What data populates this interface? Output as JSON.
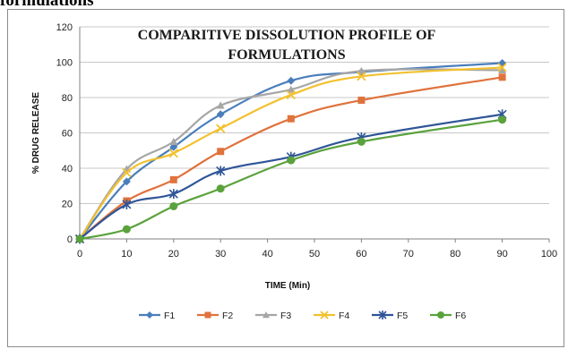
{
  "page": {
    "heading": "formulations"
  },
  "chart_data": {
    "type": "line",
    "title_lines": [
      "COMPARITIVE DISSOLUTION PROFILE OF",
      "FORMULATIONS"
    ],
    "xlabel": "TIME (Min)",
    "ylabel": "% DRUG RELEASE",
    "x": [
      0,
      10,
      20,
      30,
      45,
      60,
      90
    ],
    "xlim": [
      0,
      100
    ],
    "ylim": [
      0,
      120
    ],
    "xticks": [
      0,
      10,
      20,
      30,
      40,
      50,
      60,
      70,
      80,
      90,
      100
    ],
    "yticks": [
      0,
      20,
      40,
      60,
      80,
      100,
      120
    ],
    "grid": "horizontal",
    "legend_position": "bottom",
    "series": [
      {
        "name": "F1",
        "color": "#4a7ebb",
        "marker": "diamond",
        "values": [
          0,
          32.5,
          52,
          70.5,
          89.5,
          94.5,
          99.5
        ]
      },
      {
        "name": "F2",
        "color": "#e0723c",
        "marker": "square",
        "values": [
          0,
          21.5,
          33.5,
          49.5,
          68,
          78.5,
          91.5
        ]
      },
      {
        "name": "F3",
        "color": "#a6a6a6",
        "marker": "triangle",
        "values": [
          0,
          39.5,
          55,
          75.5,
          84.5,
          95,
          95.5
        ]
      },
      {
        "name": "F4",
        "color": "#f2c12e",
        "marker": "x",
        "values": [
          0,
          37.5,
          48.5,
          62.5,
          81.5,
          92,
          97
        ]
      },
      {
        "name": "F5",
        "color": "#2f5597",
        "marker": "asterisk",
        "values": [
          0,
          19.5,
          25.5,
          38.5,
          46.5,
          57.5,
          70.5
        ]
      },
      {
        "name": "F6",
        "color": "#5aa23c",
        "marker": "circle",
        "values": [
          0,
          5.5,
          18.5,
          28.5,
          44.5,
          55,
          67.5
        ]
      }
    ]
  }
}
